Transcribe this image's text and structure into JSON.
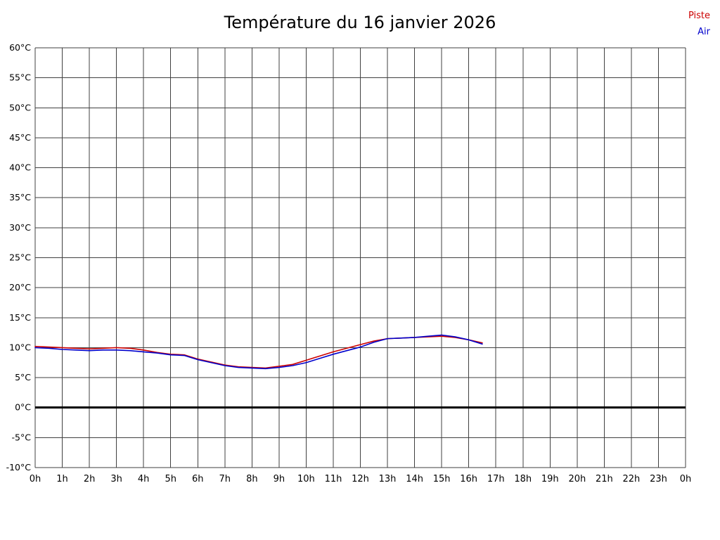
{
  "chart_data": {
    "type": "line",
    "title": "Température du 16 janvier 2026",
    "xlabel": "",
    "ylabel": "",
    "xlim": [
      0,
      24
    ],
    "ylim": [
      -10,
      60
    ],
    "y_step": 5,
    "grid": true,
    "zero_line": true,
    "legend_position": "top-right",
    "x_ticks": [
      "0h",
      "1h",
      "2h",
      "3h",
      "4h",
      "5h",
      "6h",
      "7h",
      "8h",
      "9h",
      "10h",
      "11h",
      "12h",
      "13h",
      "14h",
      "15h",
      "16h",
      "17h",
      "18h",
      "19h",
      "20h",
      "21h",
      "22h",
      "23h",
      "0h"
    ],
    "y_ticks": [
      "60°C",
      "55°C",
      "50°C",
      "45°C",
      "40°C",
      "35°C",
      "30°C",
      "25°C",
      "20°C",
      "15°C",
      "10°C",
      "5°C",
      "0°C",
      "-5°C",
      "-10°C"
    ],
    "x": [
      0,
      0.5,
      1,
      1.5,
      2,
      2.5,
      3,
      3.5,
      4,
      4.5,
      5,
      5.5,
      6,
      6.5,
      7,
      7.5,
      8,
      8.5,
      9,
      9.5,
      10,
      10.5,
      11,
      11.5,
      12,
      12.5,
      13,
      13.5,
      14,
      14.5,
      15,
      15.5,
      16,
      16.5
    ],
    "series": [
      {
        "name": "Piste",
        "color": "#cc0000",
        "values": [
          10.2,
          10.1,
          10.0,
          9.9,
          9.8,
          9.9,
          10.0,
          9.9,
          9.6,
          9.2,
          8.9,
          8.8,
          8.1,
          7.6,
          7.1,
          6.8,
          6.7,
          6.6,
          6.9,
          7.2,
          7.9,
          8.6,
          9.3,
          9.9,
          10.5,
          11.1,
          11.5,
          11.6,
          11.7,
          11.8,
          11.9,
          11.7,
          11.3,
          10.8
        ]
      },
      {
        "name": "Air",
        "color": "#0000cc",
        "values": [
          10.0,
          9.9,
          9.7,
          9.6,
          9.5,
          9.6,
          9.6,
          9.5,
          9.3,
          9.1,
          8.8,
          8.7,
          8.0,
          7.5,
          7.0,
          6.7,
          6.6,
          6.5,
          6.7,
          7.0,
          7.5,
          8.2,
          8.9,
          9.5,
          10.1,
          10.9,
          11.5,
          11.6,
          11.7,
          11.9,
          12.1,
          11.8,
          11.3,
          10.6
        ]
      }
    ],
    "colors": {
      "grid": "#404040",
      "zero_line": "#000000",
      "text": "#000000",
      "background": "#ffffff"
    }
  }
}
